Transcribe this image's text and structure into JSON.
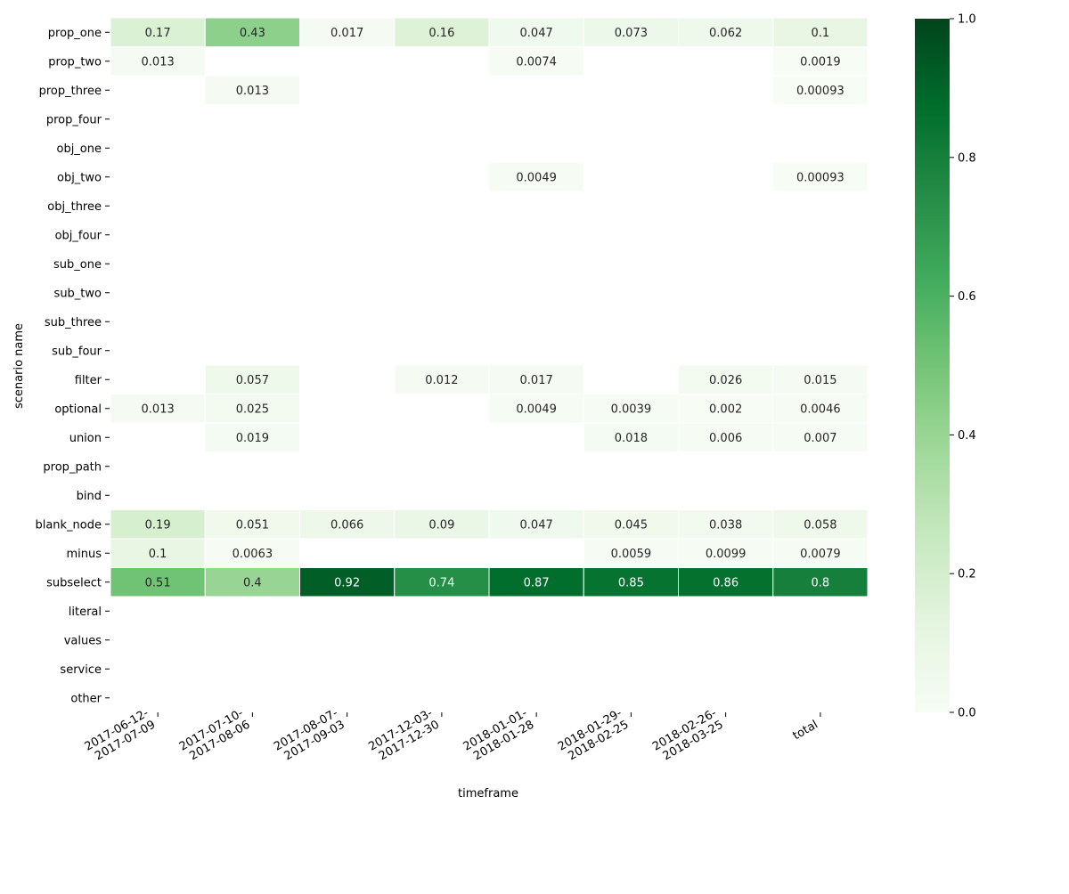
{
  "chart_data": {
    "type": "heatmap",
    "xlabel": "timeframe",
    "ylabel": "scenario name",
    "x_categories": [
      "2017-06-12-\n2017-07-09",
      "2017-07-10-\n2017-08-06",
      "2017-08-07-\n2017-09-03",
      "2017-12-03-\n2017-12-30",
      "2018-01-01-\n2018-01-28",
      "2018-01-29-\n2018-02-25",
      "2018-02-26-\n2018-03-25",
      "total"
    ],
    "y_categories": [
      "prop_one",
      "prop_two",
      "prop_three",
      "prop_four",
      "obj_one",
      "obj_two",
      "obj_three",
      "obj_four",
      "sub_one",
      "sub_two",
      "sub_three",
      "sub_four",
      "filter",
      "optional",
      "union",
      "prop_path",
      "bind",
      "blank_node",
      "minus",
      "subselect",
      "literal",
      "values",
      "service",
      "other"
    ],
    "values": [
      [
        0.17,
        0.43,
        0.017,
        0.16,
        0.047,
        0.073,
        0.062,
        0.1
      ],
      [
        0.013,
        null,
        null,
        null,
        0.0074,
        null,
        null,
        0.0019
      ],
      [
        null,
        0.013,
        null,
        null,
        null,
        null,
        null,
        0.00093
      ],
      [
        null,
        null,
        null,
        null,
        null,
        null,
        null,
        null
      ],
      [
        null,
        null,
        null,
        null,
        null,
        null,
        null,
        null
      ],
      [
        null,
        null,
        null,
        null,
        0.0049,
        null,
        null,
        0.00093
      ],
      [
        null,
        null,
        null,
        null,
        null,
        null,
        null,
        null
      ],
      [
        null,
        null,
        null,
        null,
        null,
        null,
        null,
        null
      ],
      [
        null,
        null,
        null,
        null,
        null,
        null,
        null,
        null
      ],
      [
        null,
        null,
        null,
        null,
        null,
        null,
        null,
        null
      ],
      [
        null,
        null,
        null,
        null,
        null,
        null,
        null,
        null
      ],
      [
        null,
        null,
        null,
        null,
        null,
        null,
        null,
        null
      ],
      [
        null,
        0.057,
        null,
        0.012,
        0.017,
        null,
        0.026,
        0.015
      ],
      [
        0.013,
        0.025,
        null,
        null,
        0.0049,
        0.0039,
        0.002,
        0.0046
      ],
      [
        null,
        0.019,
        null,
        null,
        null,
        0.018,
        0.006,
        0.007
      ],
      [
        null,
        null,
        null,
        null,
        null,
        null,
        null,
        null
      ],
      [
        null,
        null,
        null,
        null,
        null,
        null,
        null,
        null
      ],
      [
        0.19,
        0.051,
        0.066,
        0.09,
        0.047,
        0.045,
        0.038,
        0.058
      ],
      [
        0.1,
        0.0063,
        null,
        null,
        null,
        0.0059,
        0.0099,
        0.0079
      ],
      [
        0.51,
        0.4,
        0.92,
        0.74,
        0.87,
        0.85,
        0.86,
        0.8
      ],
      [
        null,
        null,
        null,
        null,
        null,
        null,
        null,
        null
      ],
      [
        null,
        null,
        null,
        null,
        null,
        null,
        null,
        null
      ],
      [
        null,
        null,
        null,
        null,
        null,
        null,
        null,
        null
      ],
      [
        null,
        null,
        null,
        null,
        null,
        null,
        null,
        null
      ]
    ],
    "colorbar": {
      "range": [
        0.0,
        1.0
      ],
      "ticks": [
        "0.0",
        "0.2",
        "0.4",
        "0.6",
        "0.8",
        "1.0"
      ],
      "colormap": "Greens"
    },
    "grid": false
  }
}
